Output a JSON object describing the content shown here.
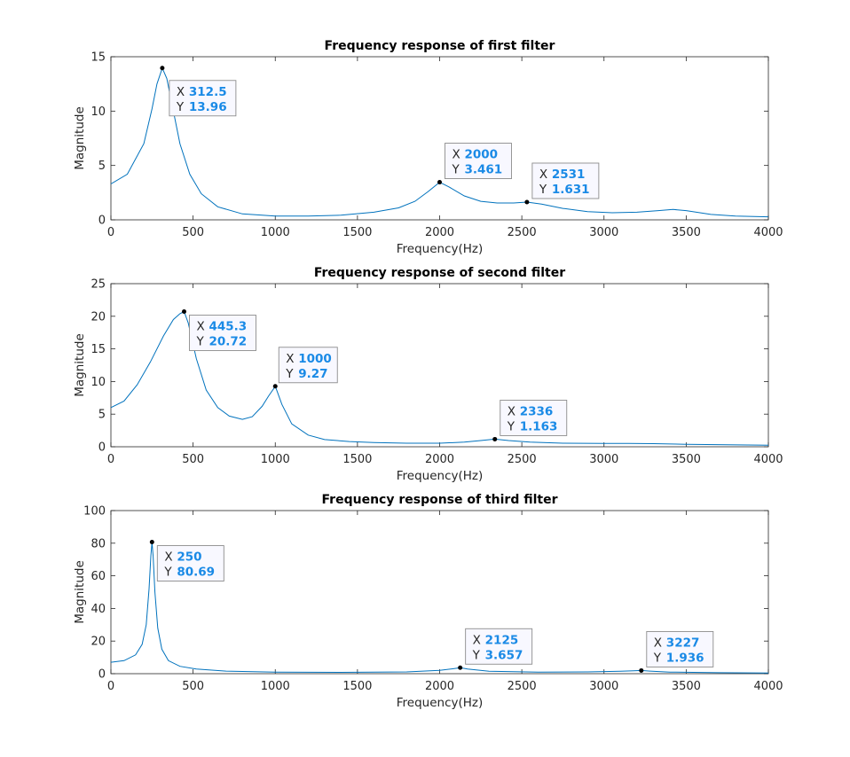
{
  "chart_data": [
    {
      "type": "line",
      "title": "Frequency response of first filter",
      "xlabel": "Frequency(Hz)",
      "ylabel": "Magnitude",
      "xlim": [
        0,
        4000
      ],
      "ylim": [
        0,
        15
      ],
      "xticks": [
        0,
        500,
        1000,
        1500,
        2000,
        2500,
        3000,
        3500,
        4000
      ],
      "yticks": [
        0,
        5,
        10,
        15
      ],
      "series": [
        {
          "color": "#0072bd",
          "x": [
            0,
            100,
            200,
            250,
            280,
            312.5,
            340,
            380,
            420,
            480,
            550,
            650,
            800,
            1000,
            1200,
            1400,
            1600,
            1750,
            1850,
            1930,
            2000,
            2060,
            2150,
            2250,
            2350,
            2450,
            2531,
            2620,
            2750,
            2900,
            3050,
            3200,
            3330,
            3420,
            3500,
            3650,
            3800,
            4000
          ],
          "y": [
            3.3,
            4.2,
            7.0,
            10.2,
            12.5,
            13.96,
            13.0,
            10.0,
            7.0,
            4.2,
            2.4,
            1.2,
            0.55,
            0.35,
            0.35,
            0.42,
            0.7,
            1.1,
            1.7,
            2.6,
            3.46,
            3.0,
            2.2,
            1.7,
            1.55,
            1.55,
            1.63,
            1.45,
            1.05,
            0.75,
            0.65,
            0.7,
            0.85,
            0.95,
            0.85,
            0.5,
            0.35,
            0.28
          ]
        }
      ],
      "datatips": [
        {
          "x": "312.5",
          "y": "13.96"
        },
        {
          "x": "2000",
          "y": "3.461"
        },
        {
          "x": "2531",
          "y": "1.631"
        }
      ]
    },
    {
      "type": "line",
      "title": "Frequency response of second filter",
      "xlabel": "Frequency(Hz)",
      "ylabel": "Magnitude",
      "xlim": [
        0,
        4000
      ],
      "ylim": [
        0,
        25
      ],
      "xticks": [
        0,
        500,
        1000,
        1500,
        2000,
        2500,
        3000,
        3500,
        4000
      ],
      "yticks": [
        0,
        5,
        10,
        15,
        20,
        25
      ],
      "series": [
        {
          "color": "#0072bd",
          "x": [
            0,
            80,
            160,
            240,
            320,
            380,
            420,
            445.3,
            470,
            520,
            580,
            650,
            720,
            800,
            860,
            920,
            960,
            1000,
            1040,
            1100,
            1200,
            1300,
            1450,
            1600,
            1800,
            2000,
            2150,
            2250,
            2336,
            2420,
            2550,
            2750,
            3000,
            3150,
            3300,
            3500,
            3750,
            4000
          ],
          "y": [
            6.0,
            7.0,
            9.5,
            13.0,
            17.0,
            19.5,
            20.4,
            20.72,
            19.0,
            13.5,
            8.7,
            6.0,
            4.7,
            4.2,
            4.6,
            6.2,
            7.8,
            9.27,
            6.5,
            3.5,
            1.8,
            1.1,
            0.8,
            0.65,
            0.55,
            0.55,
            0.7,
            0.95,
            1.163,
            0.95,
            0.7,
            0.55,
            0.5,
            0.52,
            0.48,
            0.38,
            0.3,
            0.25
          ]
        }
      ],
      "datatips": [
        {
          "x": "445.3",
          "y": "20.72"
        },
        {
          "x": "1000",
          "y": "9.27"
        },
        {
          "x": "2336",
          "y": "1.163"
        }
      ]
    },
    {
      "type": "line",
      "title": "Frequency response of third filter",
      "xlabel": "Frequency(Hz)",
      "ylabel": "Magnitude",
      "xlim": [
        0,
        4000
      ],
      "ylim": [
        0,
        100
      ],
      "xticks": [
        0,
        500,
        1000,
        1500,
        2000,
        2500,
        3000,
        3500,
        4000
      ],
      "yticks": [
        0,
        20,
        40,
        60,
        80,
        100
      ],
      "series": [
        {
          "color": "#0072bd",
          "x": [
            0,
            80,
            150,
            190,
            215,
            232,
            243,
            250,
            257,
            268,
            285,
            310,
            350,
            420,
            520,
            700,
            1000,
            1400,
            1800,
            2000,
            2080,
            2125,
            2170,
            2300,
            2600,
            2900,
            3100,
            3180,
            3227,
            3280,
            3400,
            3700,
            4000
          ],
          "y": [
            7.0,
            8.0,
            11.5,
            18.0,
            30.0,
            52.0,
            72.0,
            80.69,
            72.0,
            50.0,
            28.0,
            15.0,
            8.0,
            4.5,
            2.8,
            1.6,
            1.0,
            0.8,
            1.1,
            2.0,
            3.0,
            3.657,
            2.9,
            1.5,
            1.0,
            1.1,
            1.5,
            1.8,
            1.936,
            1.6,
            1.0,
            0.6,
            0.45
          ]
        }
      ],
      "datatips": [
        {
          "x": "250",
          "y": "80.69"
        },
        {
          "x": "2125",
          "y": "3.657"
        },
        {
          "x": "3227",
          "y": "1.936"
        }
      ]
    }
  ],
  "datatip_labels": {
    "x_key": "X",
    "y_key": "Y"
  }
}
